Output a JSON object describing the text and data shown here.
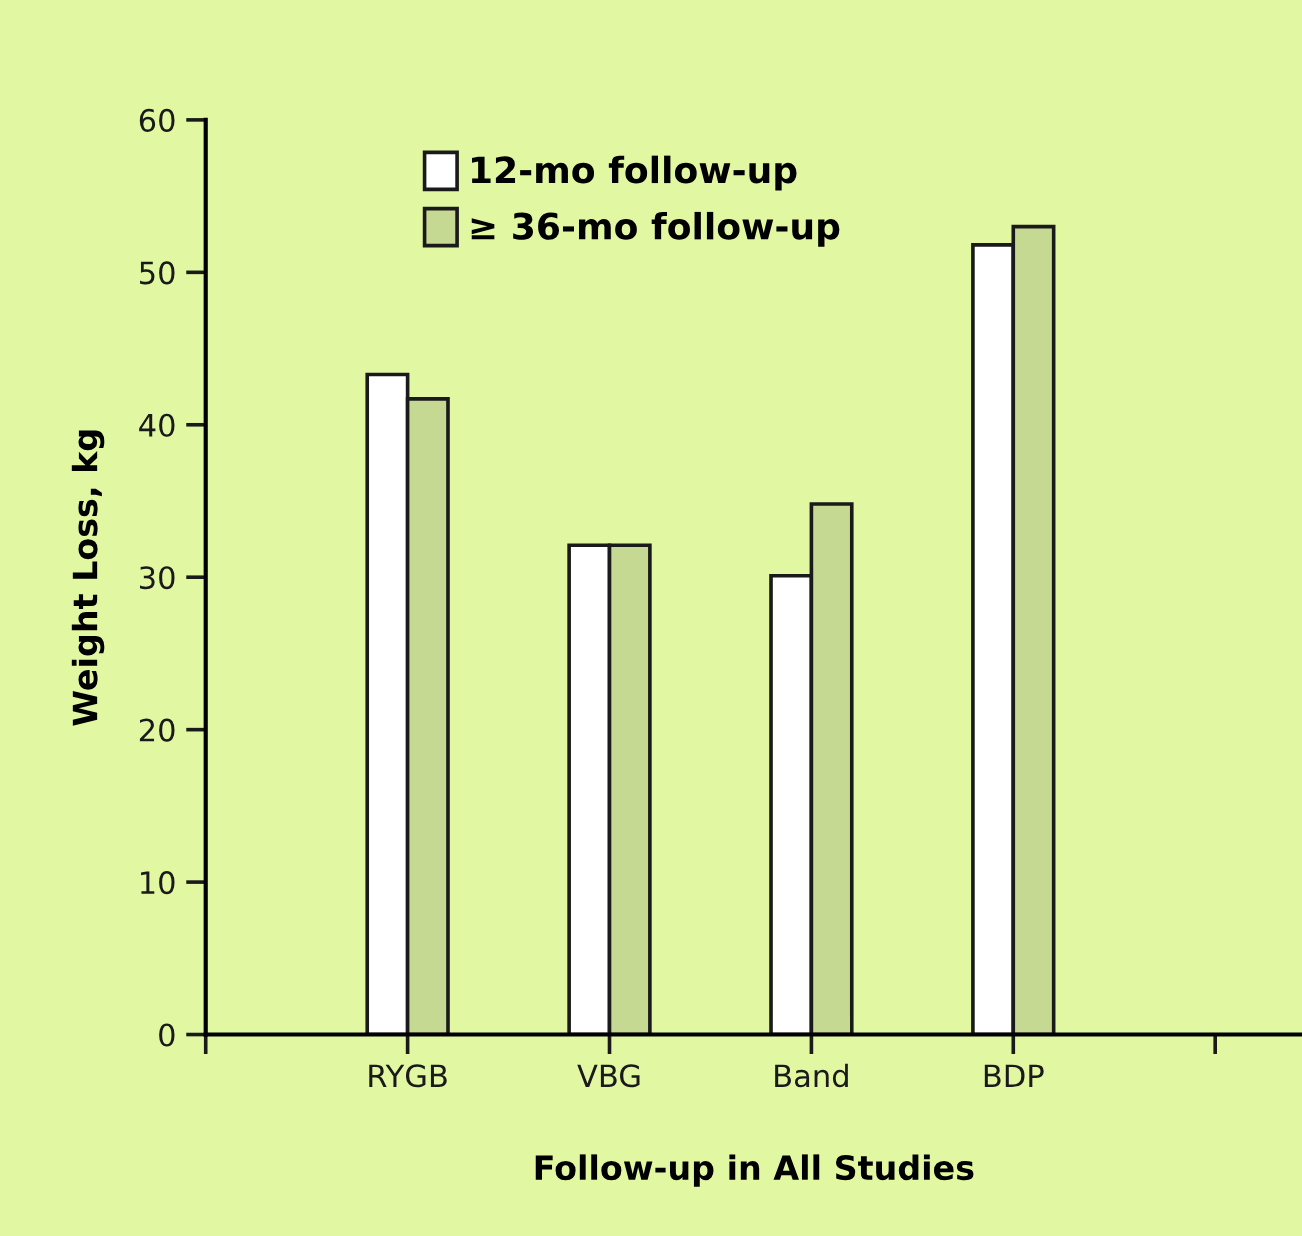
{
  "chart_data": {
    "type": "bar",
    "xlabel": "Follow-up in All Studies",
    "ylabel": "Weight Loss, kg",
    "categories": [
      null,
      "RYGB",
      "VBG",
      "Band",
      "BDP",
      null
    ],
    "series": [
      {
        "name": "12-mo follow-up",
        "color": "#ffffff",
        "values": [
          null,
          43.3,
          32.1,
          30.1,
          51.8,
          null
        ]
      },
      {
        "name": "≥ 36-mo follow-up",
        "color": "#c6d992",
        "values": [
          null,
          41.7,
          32.1,
          34.8,
          53.0,
          null
        ]
      }
    ],
    "ylim": [
      0,
      60
    ],
    "yticks": [
      0,
      10,
      20,
      30,
      40,
      50,
      60
    ],
    "grid": false,
    "legend": "top left"
  }
}
